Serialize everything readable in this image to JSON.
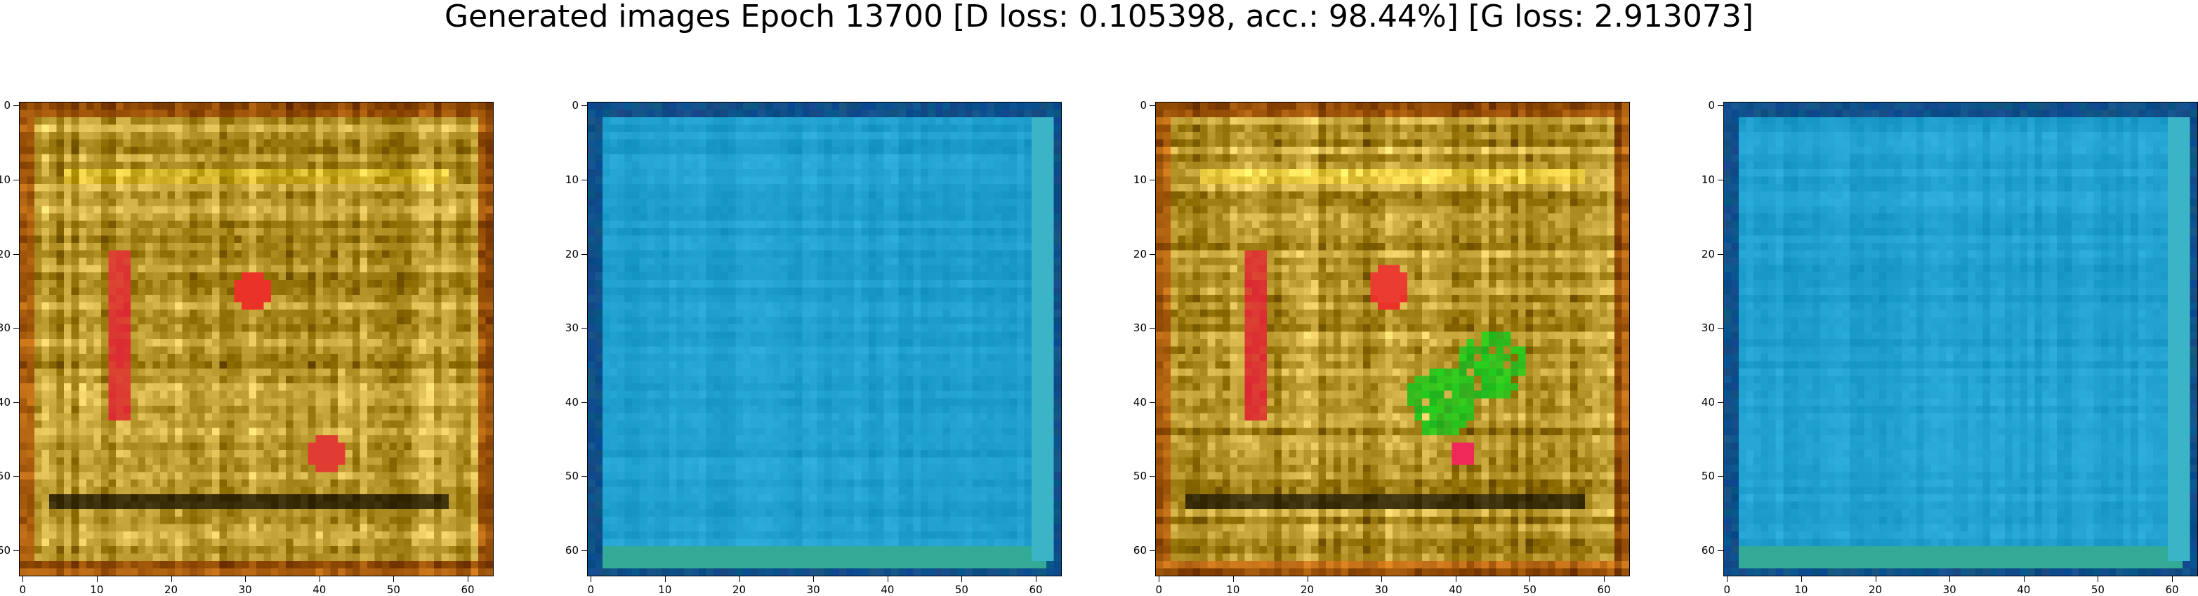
{
  "title": "Generated images Epoch 13700 [D loss: 0.105398, acc.: 98.44%] [G loss: 2.913073]",
  "axis_ticks": [
    "0",
    "10",
    "20",
    "30",
    "40",
    "50",
    "60"
  ],
  "axis_tick_values": [
    0,
    10,
    20,
    30,
    40,
    50,
    60
  ],
  "image_size": 64,
  "panels": [
    {
      "name": "sample-1",
      "palette": "golden-brown",
      "base": "#b6962a",
      "accent": "#e2203a",
      "edge": "#8a5a12"
    },
    {
      "name": "sample-2",
      "palette": "blue",
      "base": "#1fa0cf",
      "accent": "#38c0d6",
      "edge": "#10508a"
    },
    {
      "name": "sample-3",
      "palette": "golden-brown",
      "base": "#b6962a",
      "accent": "#20c020",
      "edge": "#8a5a12"
    },
    {
      "name": "sample-4",
      "palette": "blue",
      "base": "#1fa0cf",
      "accent": "#3ac0c8",
      "edge": "#10508a"
    }
  ]
}
